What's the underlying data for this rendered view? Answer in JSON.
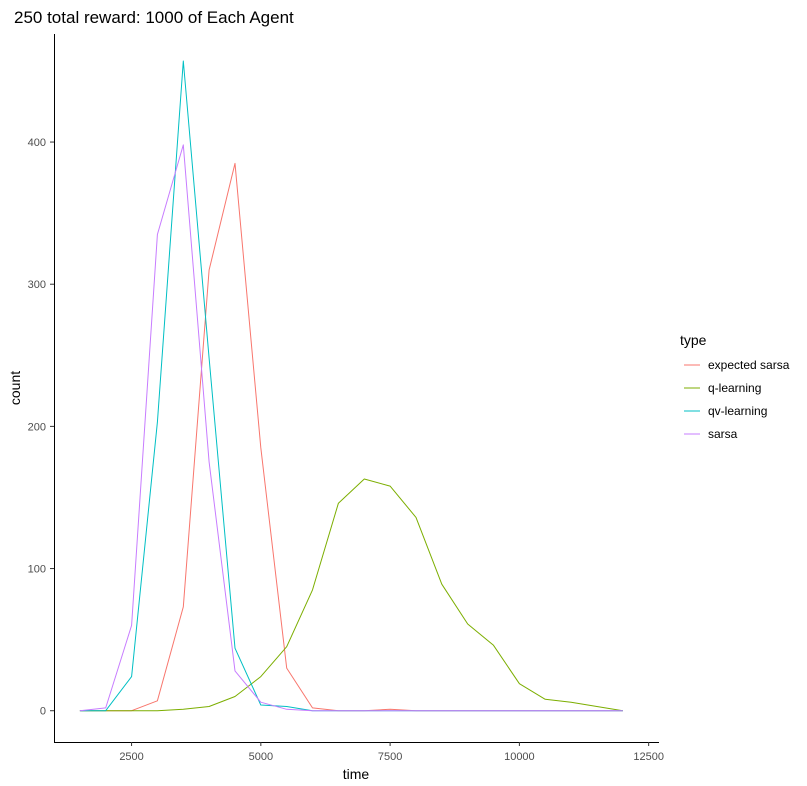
{
  "chart_data": {
    "type": "line",
    "title": "250 total reward: 1000 of Each Agent",
    "xlabel": "time",
    "ylabel": "count",
    "xlim": [
      1000,
      12700
    ],
    "ylim": [
      -22,
      476
    ],
    "xticks": [
      2500,
      5000,
      7500,
      10000,
      12500
    ],
    "yticks": [
      0,
      100,
      200,
      300,
      400
    ],
    "grid": false,
    "legend": {
      "title": "type",
      "position": "right"
    },
    "series": [
      {
        "name": "expected sarsa",
        "color": "#F8766D",
        "x": [
          1500,
          2000,
          2500,
          3000,
          3500,
          4000,
          4500,
          5000,
          5500,
          6000,
          6500,
          7000,
          7500,
          8000,
          8500,
          9000,
          9500,
          10000,
          10500,
          11000,
          11500,
          12000
        ],
        "y": [
          0,
          0,
          0,
          7,
          73,
          310,
          385,
          185,
          30,
          2,
          0,
          0,
          1,
          0,
          0,
          0,
          0,
          0,
          0,
          0,
          0,
          0
        ]
      },
      {
        "name": "q-learning",
        "color": "#7CAE00",
        "x": [
          1500,
          2000,
          2500,
          3000,
          3500,
          4000,
          4500,
          5000,
          5500,
          6000,
          6500,
          7000,
          7500,
          8000,
          8500,
          9000,
          9500,
          10000,
          10500,
          11000,
          11500,
          12000
        ],
        "y": [
          0,
          0,
          0,
          0,
          1,
          3,
          10,
          24,
          45,
          85,
          146,
          163,
          158,
          136,
          89,
          61,
          46,
          19,
          8,
          6,
          3,
          0
        ]
      },
      {
        "name": "qv-learning",
        "color": "#00BFC4",
        "x": [
          1500,
          2000,
          2500,
          3000,
          3500,
          4000,
          4500,
          5000,
          5500,
          6000,
          6500,
          7000,
          7500,
          8000,
          8500,
          9000,
          9500,
          10000,
          10500,
          11000,
          11500,
          12000
        ],
        "y": [
          0,
          0,
          24,
          203,
          457,
          248,
          44,
          4,
          3,
          0,
          0,
          0,
          0,
          0,
          0,
          0,
          0,
          0,
          0,
          0,
          0,
          0
        ]
      },
      {
        "name": "sarsa",
        "color": "#C77CFF",
        "x": [
          1500,
          2000,
          2500,
          3000,
          3500,
          4000,
          4500,
          5000,
          5500,
          6000,
          6500,
          7000,
          7500,
          8000,
          8500,
          9000,
          9500,
          10000,
          10500,
          11000,
          11500,
          12000
        ],
        "y": [
          0,
          2,
          60,
          335,
          398,
          175,
          28,
          6,
          1,
          0,
          0,
          0,
          0,
          0,
          0,
          0,
          0,
          0,
          0,
          0,
          0,
          0
        ]
      }
    ]
  }
}
